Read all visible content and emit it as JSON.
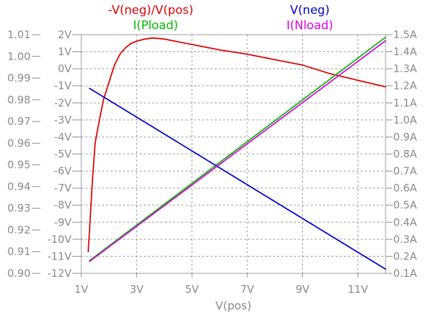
{
  "chart_data": {
    "type": "line",
    "xlabel": "V(pos)",
    "x_axis": {
      "range": [
        1.0,
        12.0
      ],
      "ticks": [
        1,
        3,
        5,
        7,
        9,
        11
      ],
      "tick_labels": [
        "1V",
        "3V",
        "5V",
        "7V",
        "9V",
        "11V"
      ]
    },
    "y_axis_ratio": {
      "range": [
        0.9,
        1.01
      ],
      "ticks": [
        0.9,
        0.91,
        0.92,
        0.93,
        0.94,
        0.95,
        0.96,
        0.97,
        0.98,
        0.99,
        1.0,
        1.01
      ],
      "tick_labels": [
        "0.90",
        "0.91",
        "0.92",
        "0.93",
        "0.94",
        "0.95",
        "0.96",
        "0.97",
        "0.98",
        "0.99",
        "1.00",
        "1.01"
      ]
    },
    "y_axis_voltage": {
      "range": [
        -12,
        2
      ],
      "ticks": [
        -12,
        -11,
        -10,
        -9,
        -8,
        -7,
        -6,
        -5,
        -4,
        -3,
        -2,
        -1,
        0,
        1,
        2
      ],
      "tick_labels": [
        "-12V",
        "-11V",
        "-10V",
        "-9V",
        "-8V",
        "-7V",
        "-6V",
        "-5V",
        "-4V",
        "-3V",
        "-2V",
        "-1V",
        "0V",
        "1V",
        "2V"
      ]
    },
    "y_axis_current": {
      "range": [
        0.1,
        1.5
      ],
      "ticks": [
        0.1,
        0.2,
        0.3,
        0.4,
        0.5,
        0.6,
        0.7,
        0.8,
        0.9,
        1.0,
        1.1,
        1.2,
        1.3,
        1.4,
        1.5
      ],
      "tick_labels": [
        "0.1A",
        "0.2A",
        "0.3A",
        "0.4A",
        "0.5A",
        "0.6A",
        "0.7A",
        "0.8A",
        "0.9A",
        "1.0A",
        "1.1A",
        "1.2A",
        "1.3A",
        "1.4A",
        "1.5A"
      ]
    },
    "grid": true,
    "series": [
      {
        "name": "-V(neg)/V(pos)",
        "color": "#dd0000",
        "axis": "ratio",
        "x": [
          1.25,
          1.3,
          1.4,
          1.5,
          1.6,
          1.8,
          2.0,
          2.2,
          2.4,
          2.6,
          2.8,
          3.0,
          3.3,
          3.6,
          4.0,
          5.0,
          6.0,
          7.0,
          8.0,
          9.0,
          10.0,
          11.0,
          12.0
        ],
        "y": [
          0.91,
          0.92,
          0.942,
          0.96,
          0.967,
          0.98,
          0.988,
          0.996,
          1.001,
          1.004,
          1.006,
          1.007,
          1.008,
          1.0085,
          1.008,
          1.0055,
          1.003,
          1.001,
          0.9985,
          0.996,
          0.992,
          0.989,
          0.986
        ]
      },
      {
        "name": "I(Pload)",
        "color": "#00bb00",
        "axis": "current",
        "x": [
          1.3,
          12.0
        ],
        "y": [
          0.175,
          1.485
        ]
      },
      {
        "name": "V(neg)",
        "color": "#0000cc",
        "axis": "voltage",
        "x": [
          1.3,
          12.0
        ],
        "y": [
          -1.15,
          -11.75
        ]
      },
      {
        "name": "I(Nload)",
        "color": "#dd00dd",
        "axis": "current",
        "x": [
          1.3,
          12.0
        ],
        "y": [
          0.17,
          1.465
        ]
      }
    ]
  }
}
